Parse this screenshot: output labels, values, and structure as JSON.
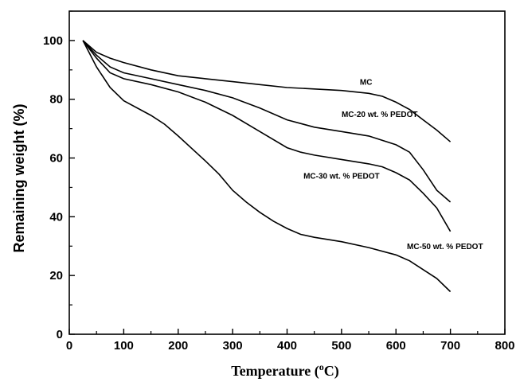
{
  "chart_data": {
    "type": "line",
    "title": "",
    "xlabel": "Temperature (",
    "xlabel_sup": "o",
    "xlabel_tail": "C)",
    "ylabel": "Remaining weight (%)",
    "xlim": [
      0,
      800
    ],
    "ylim": [
      0,
      110
    ],
    "xticks": [
      0,
      100,
      200,
      300,
      400,
      500,
      600,
      700,
      800
    ],
    "yticks": [
      0,
      20,
      40,
      60,
      80,
      100
    ],
    "xtick_labels": [
      "0",
      "100",
      "200",
      "300",
      "400",
      "500",
      "600",
      "700",
      "800"
    ],
    "ytick_labels": [
      "0",
      "20",
      "40",
      "60",
      "80",
      "100"
    ],
    "grid": false,
    "series": [
      {
        "name": "MC",
        "x": [
          25,
          50,
          75,
          100,
          150,
          200,
          250,
          300,
          350,
          400,
          450,
          500,
          550,
          575,
          600,
          625,
          650,
          675,
          700
        ],
        "y": [
          100,
          96,
          94,
          92.5,
          90,
          88,
          87,
          86,
          85,
          84,
          83.5,
          83,
          82,
          81,
          79,
          76.5,
          73,
          69.5,
          65.5
        ]
      },
      {
        "name": "MC-20 wt. % PEDOT",
        "x": [
          25,
          50,
          75,
          100,
          150,
          200,
          250,
          300,
          350,
          400,
          450,
          500,
          550,
          575,
          600,
          625,
          650,
          675,
          700
        ],
        "y": [
          100,
          95,
          91,
          89,
          87,
          85,
          83,
          80.5,
          77,
          73,
          70.5,
          69,
          67.5,
          66,
          64.5,
          62,
          56,
          49,
          45
        ]
      },
      {
        "name": "MC-30 wt. % PEDOT",
        "x": [
          25,
          50,
          75,
          100,
          150,
          200,
          250,
          300,
          350,
          400,
          425,
          450,
          500,
          550,
          575,
          600,
          625,
          650,
          675,
          700
        ],
        "y": [
          100,
          94,
          89,
          87,
          85,
          82.5,
          79,
          74.5,
          69,
          63.5,
          62,
          61,
          59.5,
          58,
          57,
          55,
          52.5,
          48,
          43,
          35
        ]
      },
      {
        "name": "MC-50 wt. % PEDOT",
        "x": [
          25,
          50,
          75,
          100,
          150,
          175,
          200,
          250,
          275,
          300,
          325,
          350,
          375,
          400,
          425,
          450,
          500,
          550,
          600,
          625,
          650,
          675,
          700
        ],
        "y": [
          100,
          91,
          84,
          79.5,
          74.5,
          71.5,
          67.5,
          59,
          54.5,
          49,
          45,
          41.5,
          38.5,
          36,
          34,
          33,
          31.5,
          29.5,
          27,
          25,
          22,
          19,
          14.5
        ]
      }
    ],
    "annotations": [
      {
        "text": "MC",
        "x": 545,
        "y": 85
      },
      {
        "text": "MC-20 wt. % PEDOT",
        "x": 570,
        "y": 74
      },
      {
        "text": "MC-30 wt. % PEDOT",
        "x": 500,
        "y": 53
      },
      {
        "text": "MC-50 wt. % PEDOT",
        "x": 690,
        "y": 29
      }
    ]
  }
}
